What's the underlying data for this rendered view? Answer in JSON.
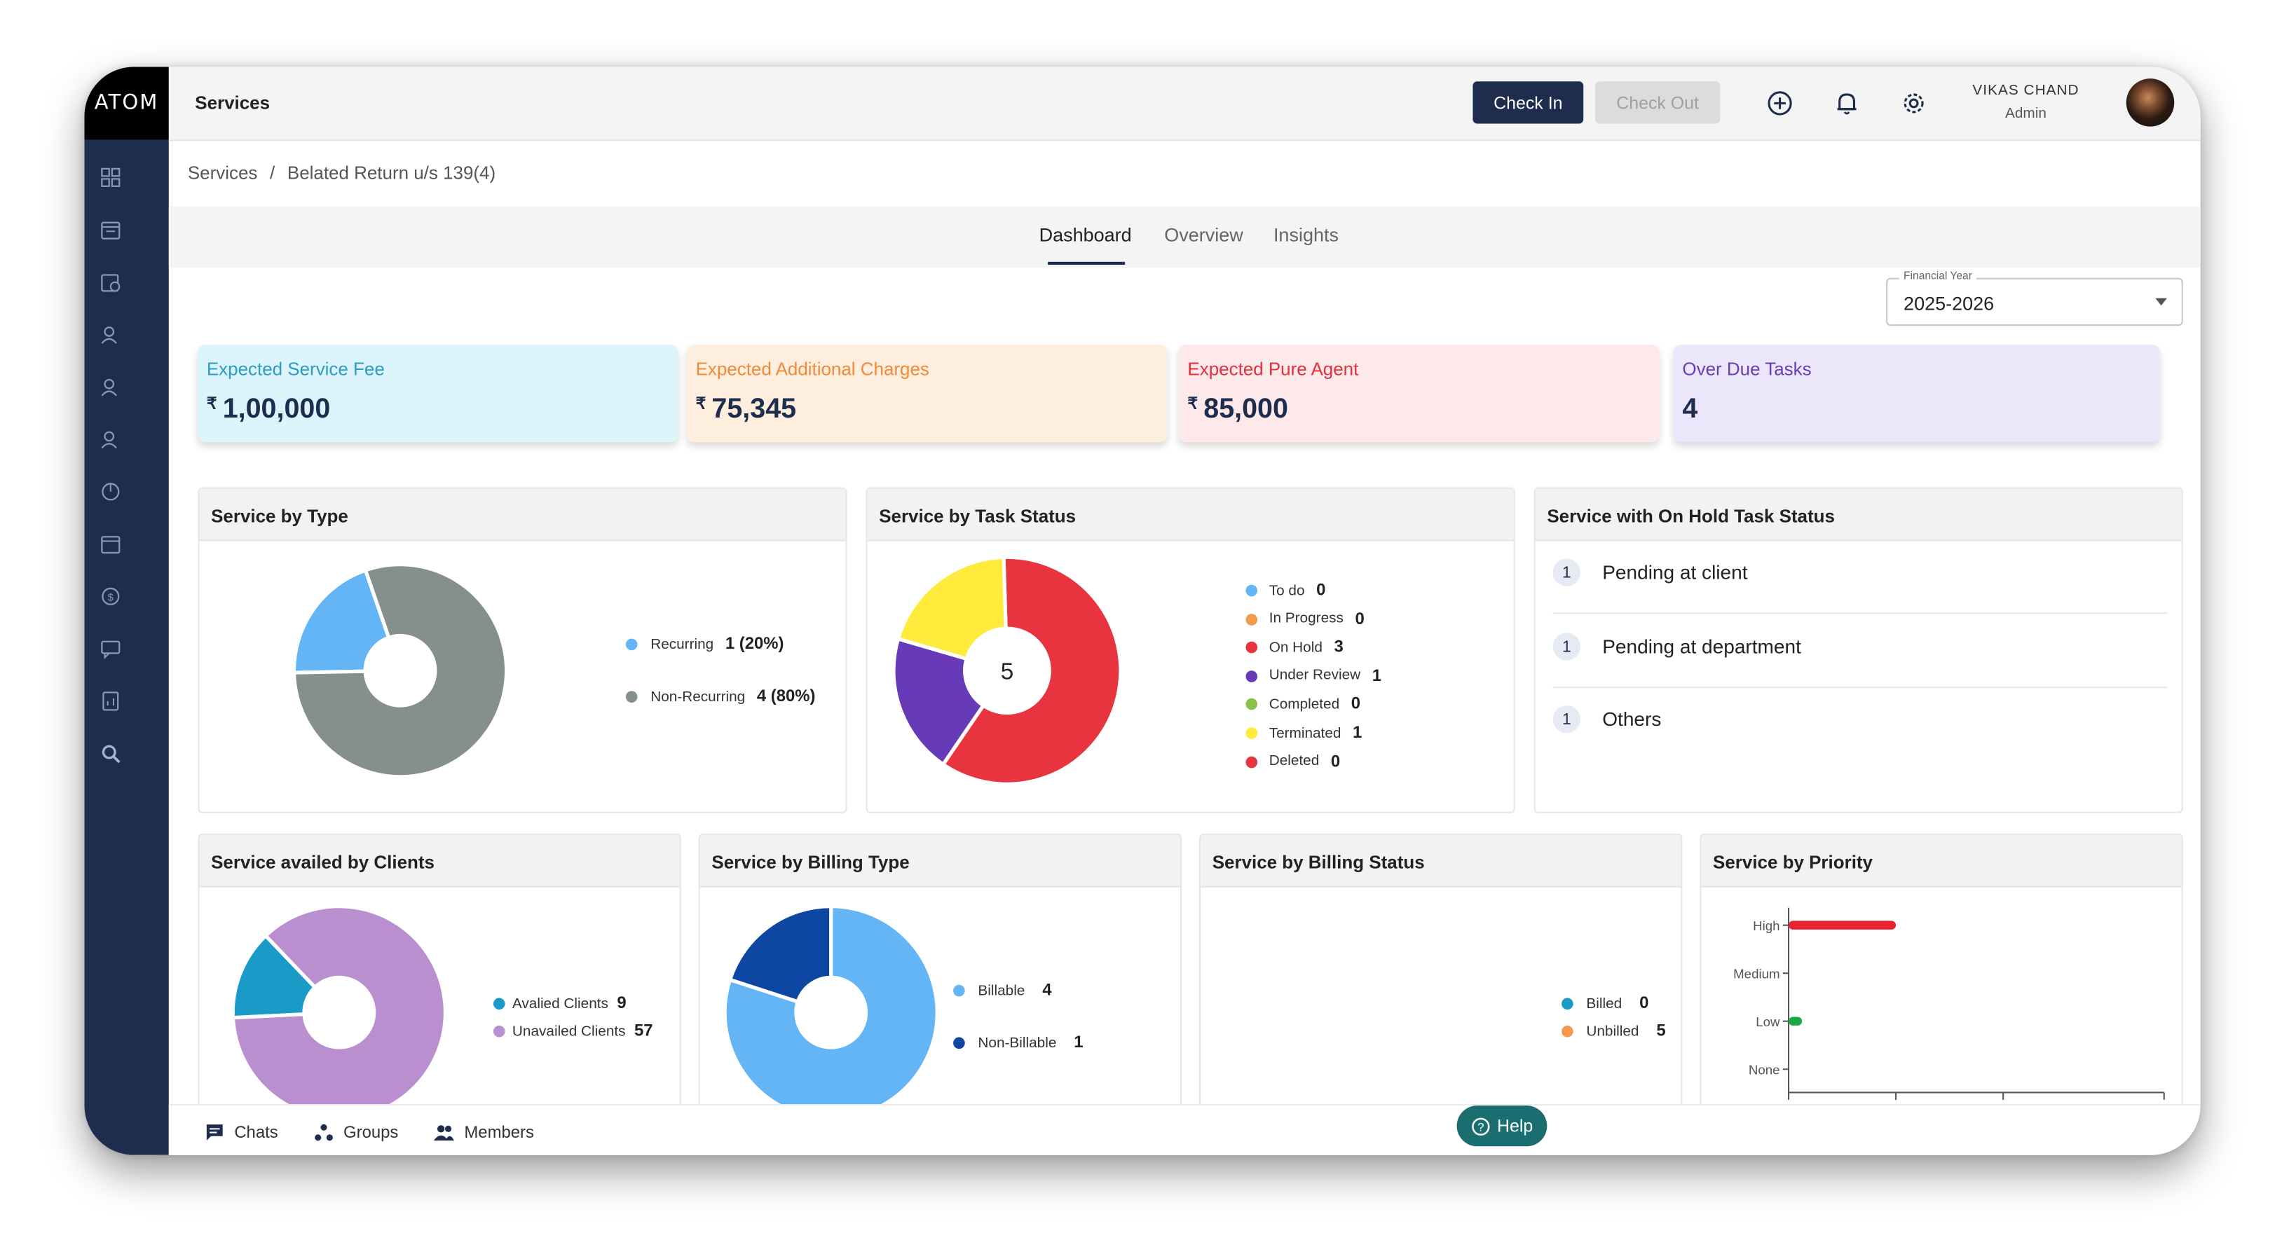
{
  "app": {
    "logo": "ATOM",
    "page_title": "Services"
  },
  "header": {
    "check_in": "Check In",
    "check_out": "Check Out",
    "user_name": "VIKAS CHAND",
    "user_role": "Admin"
  },
  "breadcrumb": {
    "root": "Services",
    "separator": "/",
    "current": "Belated Return u/s 139(4)"
  },
  "tabs": [
    {
      "label": "Dashboard",
      "active": true
    },
    {
      "label": "Overview",
      "active": false
    },
    {
      "label": "Insights",
      "active": false
    }
  ],
  "financial_year": {
    "label": "Financial Year",
    "value": "2025-2026"
  },
  "kpis": [
    {
      "label": "Expected Service Fee",
      "currency": "₹",
      "value": "1,00,000",
      "color": "#2a9dc1",
      "bg": "#dcf4fb"
    },
    {
      "label": "Expected Additional Charges",
      "currency": "₹",
      "value": "75,345",
      "color": "#ef8a3a",
      "bg": "#fdeede"
    },
    {
      "label": "Expected Pure Agent",
      "currency": "₹",
      "value": "85,000",
      "color": "#e3303c",
      "bg": "#fde8ea"
    },
    {
      "label": "Over Due Tasks",
      "currency": "",
      "value": "4",
      "color": "#6a3fb0",
      "bg": "#ece6fb"
    }
  ],
  "cards": {
    "by_type": {
      "title": "Service by Type",
      "items": [
        {
          "label": "Recurring",
          "value": "1 (20%)",
          "color": "#64b5f6"
        },
        {
          "label": "Non-Recurring",
          "value": "4 (80%)",
          "color": "#848f8e"
        }
      ]
    },
    "by_status": {
      "title": "Service by Task Status",
      "center": "5",
      "items": [
        {
          "label": "To do",
          "value": "0",
          "color": "#64b5f6"
        },
        {
          "label": "In Progress",
          "value": "0",
          "color": "#f39a4e"
        },
        {
          "label": "On Hold",
          "value": "3",
          "color": "#e8343f"
        },
        {
          "label": "Under Review",
          "value": "1",
          "color": "#673ab7"
        },
        {
          "label": "Completed",
          "value": "0",
          "color": "#8bc34a"
        },
        {
          "label": "Terminated",
          "value": "1",
          "color": "#ffeb3b"
        },
        {
          "label": "Deleted",
          "value": "0",
          "color": "#e8343f"
        }
      ]
    },
    "on_hold": {
      "title": "Service with On Hold Task Status",
      "items": [
        {
          "count": "1",
          "label": "Pending at client"
        },
        {
          "count": "1",
          "label": "Pending at department"
        },
        {
          "count": "1",
          "label": "Others"
        }
      ]
    },
    "by_clients": {
      "title": "Service availed by Clients",
      "items": [
        {
          "label": "Avalied Clients",
          "value": "9",
          "color": "#1a9bc7"
        },
        {
          "label": "Unavailed Clients",
          "value": "57",
          "color": "#ba8fcf"
        }
      ]
    },
    "billing_type": {
      "title": "Service by Billing Type",
      "items": [
        {
          "label": "Billable",
          "value": "4",
          "color": "#64b5f6"
        },
        {
          "label": "Non-Billable",
          "value": "1",
          "color": "#0d47a1"
        }
      ]
    },
    "billing_status": {
      "title": "Service by Billing Status",
      "items": [
        {
          "label": "Billed",
          "value": "0",
          "color": "#1a9bc7"
        },
        {
          "label": "Unbilled",
          "value": "5",
          "color": "#f4994f"
        }
      ]
    },
    "priority": {
      "title": "Service by Priority"
    }
  },
  "chart_data": [
    {
      "type": "pie",
      "title": "Service by Type",
      "labels": [
        "Recurring",
        "Non-Recurring"
      ],
      "values": [
        1,
        4
      ]
    },
    {
      "type": "pie",
      "title": "Service by Task Status",
      "labels": [
        "To do",
        "In Progress",
        "On Hold",
        "Under Review",
        "Completed",
        "Terminated",
        "Deleted"
      ],
      "values": [
        0,
        0,
        3,
        1,
        0,
        1,
        0
      ]
    },
    {
      "type": "pie",
      "title": "Service availed by Clients",
      "labels": [
        "Avalied Clients",
        "Unavailed Clients"
      ],
      "values": [
        9,
        57
      ]
    },
    {
      "type": "pie",
      "title": "Service by Billing Type",
      "labels": [
        "Billable",
        "Non-Billable"
      ],
      "values": [
        4,
        1
      ]
    },
    {
      "type": "pie",
      "title": "Service by Billing Status",
      "labels": [
        "Billed",
        "Unbilled"
      ],
      "values": [
        0,
        5
      ]
    },
    {
      "type": "bar",
      "orientation": "horizontal",
      "title": "Service by Priority",
      "categories": [
        "High",
        "Medium",
        "Low",
        "None"
      ],
      "values": [
        4,
        0,
        0.5,
        0
      ],
      "xticks": [
        "0",
        "4",
        "8",
        "14"
      ],
      "colors": [
        "#e8222e",
        "#e8222e",
        "#1ea84a",
        "#e8222e"
      ]
    }
  ],
  "bottom": {
    "chats": "Chats",
    "groups": "Groups",
    "members": "Members",
    "help": "Help"
  }
}
